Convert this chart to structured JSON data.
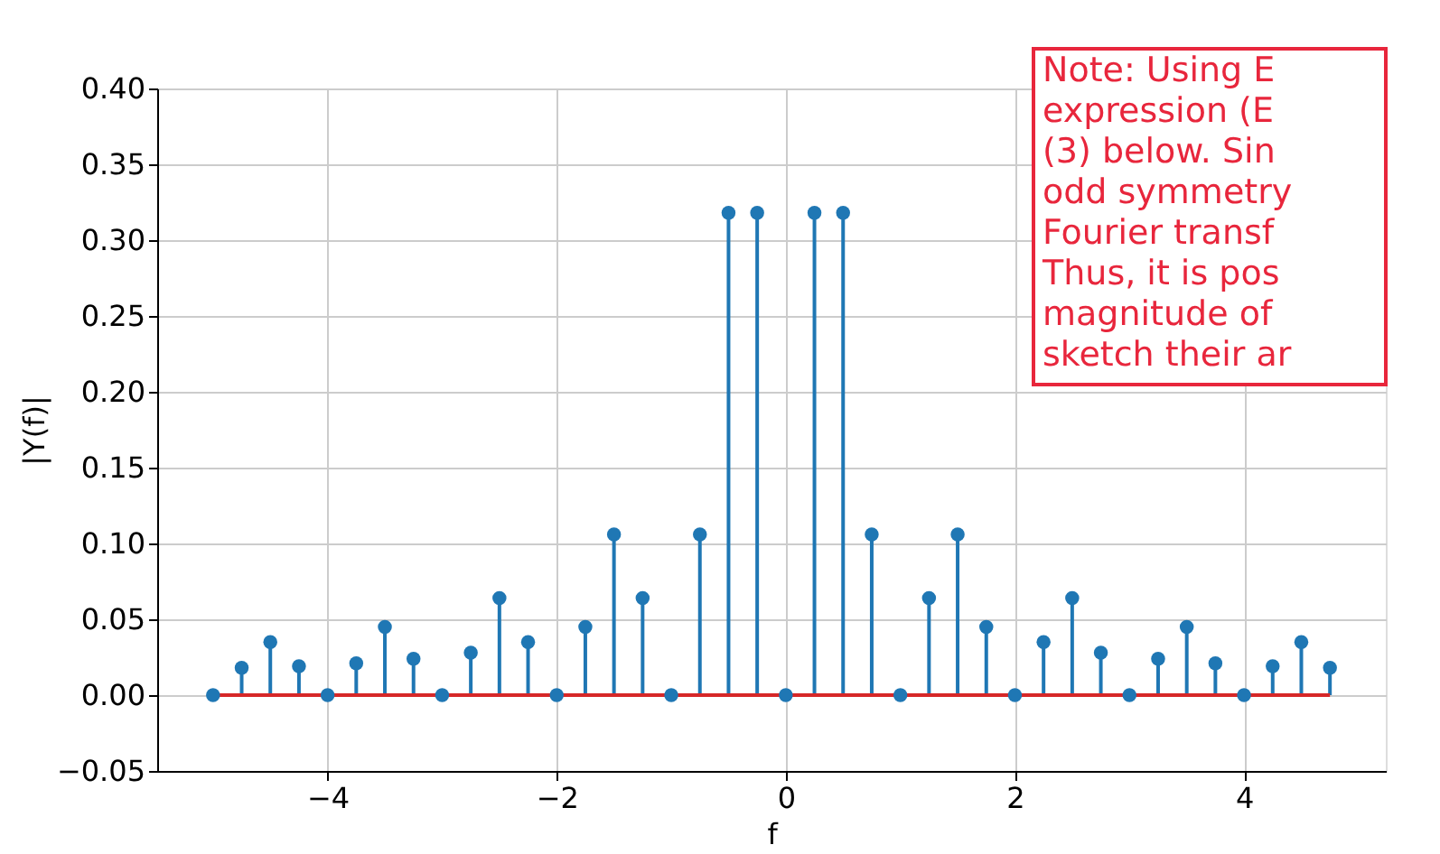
{
  "chart_data": {
    "type": "lollipop",
    "xlabel": "f",
    "ylabel": "|Y(f)|",
    "x": [
      -5,
      -4.75,
      -4.5,
      -4.25,
      -4,
      -3.75,
      -3.5,
      -3.25,
      -3,
      -2.75,
      -2.5,
      -2.25,
      -2,
      -1.75,
      -1.5,
      -1.25,
      -1,
      -0.75,
      -0.5,
      -0.25,
      0,
      0.25,
      0.5,
      0.75,
      1,
      1.25,
      1.5,
      1.75,
      2,
      2.25,
      2.5,
      2.75,
      3,
      3.25,
      3.5,
      3.75,
      4,
      4.25,
      4.5,
      4.75
    ],
    "series": [
      {
        "color": "#1f77b4",
        "values": [
          0,
          0.018,
          0.035,
          0.019,
          0,
          0.021,
          0.045,
          0.024,
          0,
          0.028,
          0.064,
          0.035,
          0,
          0.045,
          0.106,
          0.064,
          0,
          0.106,
          0.318,
          0.318,
          0,
          0.318,
          0.318,
          0.106,
          0,
          0.064,
          0.106,
          0.045,
          0,
          0.035,
          0.064,
          0.028,
          0,
          0.024,
          0.045,
          0.021,
          0,
          0.019,
          0.035,
          0.018
        ]
      }
    ],
    "xlim": [
      -5.4875,
      5.2375
    ],
    "xticks": [
      {
        "value": -4,
        "label": "−4"
      },
      {
        "value": -2,
        "label": "−2"
      },
      0,
      2,
      4
    ],
    "ylim": [
      -0.05,
      0.4
    ],
    "yticks": [
      {
        "value": -0.05,
        "label": "−0.05"
      },
      {
        "value": 0,
        "label": "0.00"
      },
      {
        "value": 0.05,
        "label": "0.05"
      },
      {
        "value": 0.1,
        "label": "0.10"
      },
      {
        "value": 0.15,
        "label": "0.15"
      },
      {
        "value": 0.2,
        "label": "0.20"
      },
      {
        "value": 0.25,
        "label": "0.25"
      },
      {
        "value": 0.3,
        "label": "0.30"
      },
      {
        "value": 0.35,
        "label": "0.35"
      },
      {
        "value": 0.4,
        "label": "0.40"
      }
    ],
    "ref_lines": [
      {
        "axis": "y",
        "value": 0,
        "color": "#d62728"
      }
    ],
    "annotations": [
      "Note: Using E\nexpression (E\n(3) below. Sin\nodd symmetry\nFourier transf\nThus, it is pos\nmagnitude of\nsketch their ar"
    ],
    "grid": true,
    "marker": "circle"
  }
}
